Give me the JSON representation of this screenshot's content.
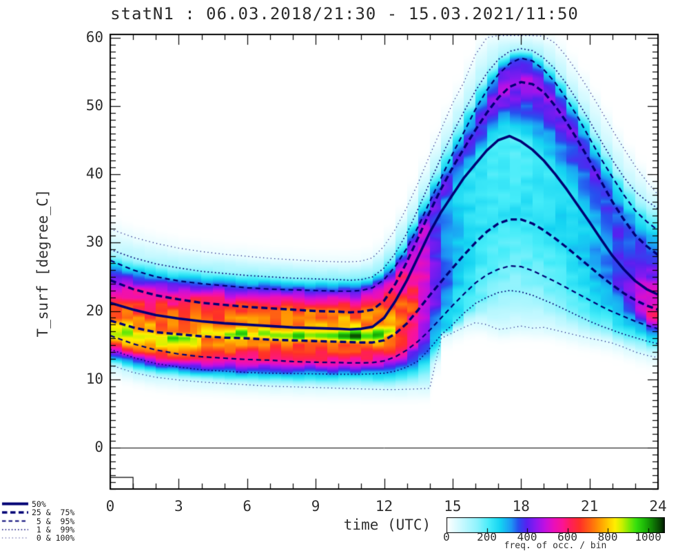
{
  "chart_data": {
    "type": "heatmap",
    "title": "statN1 : 06.03.2018/21:30 - 15.03.2021/11:50",
    "xlabel": "time (UTC)",
    "ylabel": "T_surf [degree_C]",
    "xlim": [
      0,
      24
    ],
    "xticks": [
      0,
      3,
      6,
      9,
      12,
      15,
      18,
      21,
      24
    ],
    "x_minor_step": 1,
    "ylim": [
      -6.05,
      60.47
    ],
    "yticks": [
      0,
      10,
      20,
      30,
      40,
      50,
      60
    ],
    "y_minor_step": 1,
    "zero_line_y": 0,
    "baseline_step": {
      "t_from": 0,
      "t_to": 1.0,
      "temp_top": -4.35
    },
    "line_color": "#000074",
    "legend_items": [
      {
        "style": "solid",
        "label": "50%"
      },
      {
        "style": "dash-thick",
        "label": "25 &  75%"
      },
      {
        "style": "dash",
        "label": " 5 &  95%"
      },
      {
        "style": "dot",
        "label": " 1 &  99%"
      },
      {
        "style": "dot-fine",
        "label": " 0 & 100%"
      }
    ],
    "colorbar": {
      "label": "freq. of occ. / bin",
      "ticks": [
        0,
        200,
        400,
        600,
        800,
        1000
      ],
      "vmax": 1080,
      "stops": [
        [
          0,
          "#ffffff"
        ],
        [
          70,
          "#ccf9ff"
        ],
        [
          150,
          "#8ff3fd"
        ],
        [
          210,
          "#45ecf9"
        ],
        [
          265,
          "#14d4f2"
        ],
        [
          320,
          "#1e96f4"
        ],
        [
          355,
          "#2750ef"
        ],
        [
          395,
          "#5522f0"
        ],
        [
          440,
          "#8b18f0"
        ],
        [
          485,
          "#c010e2"
        ],
        [
          530,
          "#e90fbc"
        ],
        [
          575,
          "#fb1494"
        ],
        [
          615,
          "#ff1e58"
        ],
        [
          660,
          "#ff3028"
        ],
        [
          705,
          "#ff5e14"
        ],
        [
          750,
          "#ff9104"
        ],
        [
          795,
          "#ffc400"
        ],
        [
          835,
          "#ffef00"
        ],
        [
          870,
          "#c8f000"
        ],
        [
          905,
          "#7aea06"
        ],
        [
          940,
          "#35df0e"
        ],
        [
          980,
          "#1db707"
        ],
        [
          1020,
          "#107f04"
        ],
        [
          1060,
          "#084203"
        ],
        [
          1080,
          "#021500"
        ]
      ]
    },
    "times": [
      0,
      1,
      2,
      3,
      4,
      5,
      6,
      7,
      8,
      9,
      10,
      10.5,
      11,
      11.5,
      12,
      12.5,
      13,
      13.5,
      14,
      14.5,
      15,
      15.5,
      16,
      16.5,
      17,
      17.5,
      18,
      18.5,
      19,
      19.5,
      20,
      20.5,
      21,
      21.5,
      22,
      22.5,
      23,
      23.5,
      24
    ],
    "quantiles": {
      "p100": [
        32.0,
        30.8,
        29.9,
        29.2,
        28.7,
        28.3,
        28.0,
        27.7,
        27.5,
        27.3,
        27.2,
        27.2,
        27.3,
        27.8,
        29.5,
        32.0,
        35.2,
        38.8,
        42.8,
        46.6,
        50.4,
        53.5,
        57.5,
        60.0,
        60.3,
        60.3,
        60.3,
        60.3,
        60.2,
        59.2,
        57.2,
        54.8,
        52.2,
        49.4,
        46.5,
        43.8,
        41.2,
        39.0,
        37.0
      ],
      "p99": [
        29.0,
        27.8,
        26.9,
        26.3,
        25.8,
        25.5,
        25.2,
        25.0,
        24.8,
        24.7,
        24.6,
        24.5,
        24.6,
        25.0,
        26.3,
        28.5,
        31.4,
        35.0,
        38.8,
        42.5,
        46.0,
        49.2,
        52.2,
        54.8,
        56.8,
        58.0,
        58.4,
        58.1,
        57.0,
        55.4,
        53.2,
        50.6,
        47.8,
        44.9,
        42.1,
        39.6,
        37.5,
        36.1,
        35.0
      ],
      "p95": [
        27.4,
        26.0,
        25.0,
        24.4,
        24.0,
        23.7,
        23.4,
        23.2,
        23.1,
        23.0,
        22.9,
        22.9,
        23.0,
        23.4,
        24.6,
        26.6,
        29.2,
        32.4,
        36.0,
        39.5,
        43.0,
        46.2,
        49.5,
        52.3,
        54.6,
        56.2,
        57.0,
        56.6,
        55.3,
        53.4,
        51.0,
        48.3,
        45.3,
        42.3,
        39.6,
        37.0,
        34.7,
        33.1,
        31.8
      ],
      "p75": [
        24.5,
        23.2,
        22.3,
        21.7,
        21.2,
        20.9,
        20.6,
        20.4,
        20.2,
        20.0,
        19.9,
        19.8,
        19.9,
        20.2,
        21.5,
        24.0,
        27.2,
        30.8,
        34.5,
        37.9,
        41.0,
        43.8,
        46.5,
        49.0,
        51.2,
        52.8,
        53.5,
        53.2,
        52.0,
        50.0,
        47.6,
        44.9,
        42.0,
        39.0,
        36.0,
        33.4,
        31.1,
        29.5,
        28.2
      ],
      "p50": [
        21.2,
        20.2,
        19.4,
        18.9,
        18.5,
        18.2,
        18.0,
        17.8,
        17.6,
        17.5,
        17.4,
        17.3,
        17.4,
        17.7,
        19.0,
        21.5,
        24.5,
        28.0,
        31.5,
        34.5,
        37.0,
        39.5,
        41.5,
        43.5,
        45.0,
        45.6,
        44.8,
        43.6,
        42.0,
        40.0,
        37.8,
        35.4,
        33.0,
        30.5,
        28.1,
        26.1,
        24.4,
        23.2,
        22.4
      ],
      "p25": [
        18.6,
        17.6,
        16.9,
        16.6,
        16.3,
        16.1,
        16.0,
        15.8,
        15.7,
        15.6,
        15.5,
        15.45,
        15.4,
        15.4,
        15.7,
        16.7,
        18.2,
        20.2,
        22.3,
        24.3,
        26.3,
        28.2,
        30.0,
        31.6,
        32.8,
        33.4,
        33.4,
        32.8,
        31.8,
        30.6,
        29.3,
        27.9,
        26.5,
        25.1,
        23.8,
        22.6,
        21.6,
        20.8,
        20.2
      ],
      "p5": [
        16.4,
        15.2,
        14.3,
        13.7,
        13.3,
        13.1,
        12.9,
        12.8,
        12.6,
        12.5,
        12.45,
        12.4,
        12.4,
        12.45,
        12.7,
        13.3,
        14.3,
        15.6,
        17.2,
        19.0,
        20.8,
        22.5,
        24.1,
        25.3,
        26.1,
        26.6,
        26.5,
        25.9,
        25.1,
        24.3,
        23.4,
        22.5,
        21.6,
        20.7,
        19.9,
        19.2,
        18.5,
        17.9,
        17.4
      ],
      "p1": [
        14.4,
        13.2,
        12.3,
        11.8,
        11.4,
        11.2,
        11.0,
        10.9,
        10.85,
        10.8,
        10.75,
        10.75,
        10.75,
        10.8,
        10.9,
        11.2,
        11.8,
        12.7,
        14.5,
        16.5,
        18.0,
        19.7,
        21.1,
        22.0,
        22.7,
        23.0,
        22.8,
        22.3,
        21.6,
        20.9,
        20.1,
        19.3,
        18.5,
        17.8,
        17.2,
        16.6,
        16.1,
        15.6,
        15.2
      ],
      "p0": [
        12.1,
        11.0,
        10.3,
        9.9,
        9.6,
        9.4,
        9.2,
        9.0,
        8.9,
        8.8,
        8.7,
        8.65,
        8.6,
        8.55,
        8.5,
        8.5,
        8.55,
        8.6,
        8.7,
        16.0,
        16.8,
        17.6,
        18.3,
        18.0,
        17.3,
        17.5,
        17.8,
        17.5,
        17.6,
        17.2,
        16.8,
        16.4,
        16.0,
        15.7,
        15.3,
        14.7,
        14.0,
        13.5,
        13.2
      ]
    },
    "mode_track": {
      "temp": [
        16.6,
        16.5,
        16.45,
        16.4,
        16.35,
        16.3,
        16.3,
        16.3,
        16.3,
        16.3,
        16.25,
        16.2,
        16.15,
        16.1,
        16.5,
        17.5,
        19.0,
        21.0,
        23.0,
        25.0,
        27.5,
        29.5,
        31.3,
        32.8,
        34.0,
        34.6,
        34.2,
        33.4,
        32.4,
        31.0,
        29.6,
        28.2,
        26.8,
        25.4,
        24.0,
        22.5,
        21.0,
        19.9,
        19.2
      ],
      "density": [
        910,
        915,
        920,
        925,
        930,
        935,
        940,
        945,
        958,
        995,
        1030,
        1045,
        1040,
        1020,
        950,
        850,
        725,
        620,
        480,
        370,
        302,
        266,
        246,
        236,
        230,
        228,
        231,
        236,
        242,
        252,
        264,
        280,
        302,
        332,
        372,
        422,
        492,
        580,
        662
      ]
    },
    "density_at_quantiles": {
      "p100": [
        25,
        25,
        25,
        25,
        25,
        25,
        25,
        25,
        25,
        25,
        25,
        25,
        25,
        25,
        25,
        25,
        25,
        25,
        22,
        20,
        20,
        20,
        20,
        20,
        20,
        20,
        20,
        20,
        20,
        20,
        20,
        20,
        22,
        22,
        24,
        24,
        25,
        25,
        25
      ],
      "p99": [
        85,
        100,
        115,
        128,
        138,
        145,
        150,
        154,
        157,
        159,
        160,
        160,
        160,
        158,
        150,
        140,
        130,
        120,
        110,
        102,
        100,
        100,
        102,
        108,
        115,
        120,
        118,
        112,
        105,
        100,
        98,
        95,
        92,
        90,
        88,
        86,
        85,
        84,
        84
      ],
      "p95": [
        210,
        260,
        300,
        330,
        355,
        370,
        382,
        390,
        396,
        400,
        403,
        404,
        405,
        400,
        380,
        350,
        330,
        320,
        300,
        280,
        272,
        272,
        285,
        320,
        360,
        385,
        380,
        340,
        300,
        285,
        272,
        262,
        252,
        242,
        234,
        227,
        222,
        219,
        217
      ],
      "p75": [
        480,
        530,
        570,
        605,
        635,
        655,
        670,
        682,
        692,
        700,
        706,
        708,
        710,
        705,
        660,
        600,
        540,
        505,
        475,
        445,
        425,
        418,
        428,
        450,
        468,
        475,
        470,
        455,
        440,
        435,
        428,
        416,
        402,
        386,
        370,
        356,
        346,
        340,
        338
      ],
      "p50": [
        640,
        660,
        680,
        700,
        720,
        735,
        748,
        758,
        766,
        772,
        776,
        778,
        778,
        775,
        680,
        620,
        565,
        505,
        405,
        330,
        280,
        250,
        228,
        212,
        202,
        200,
        205,
        210,
        220,
        230,
        242,
        256,
        272,
        300,
        340,
        390,
        440,
        480,
        505
      ],
      "p25": [
        790,
        780,
        772,
        766,
        762,
        758,
        755,
        753,
        752,
        752,
        753,
        755,
        757,
        758,
        745,
        705,
        645,
        565,
        475,
        385,
        315,
        275,
        247,
        231,
        221,
        216,
        216,
        221,
        226,
        236,
        246,
        261,
        281,
        311,
        351,
        402,
        462,
        532,
        605
      ],
      "p5": [
        850,
        800,
        745,
        705,
        668,
        638,
        612,
        592,
        576,
        562,
        550,
        545,
        540,
        540,
        560,
        600,
        560,
        470,
        385,
        315,
        265,
        230,
        207,
        192,
        182,
        177,
        177,
        182,
        187,
        192,
        202,
        212,
        227,
        247,
        267,
        292,
        322,
        352,
        382
      ],
      "p1": [
        500,
        460,
        420,
        390,
        365,
        345,
        330,
        318,
        308,
        300,
        295,
        292,
        290,
        290,
        295,
        305,
        315,
        320,
        310,
        275,
        240,
        210,
        186,
        166,
        152,
        142,
        137,
        137,
        142,
        147,
        152,
        157,
        164,
        172,
        180,
        187,
        194,
        200,
        206
      ],
      "p0": [
        70,
        64,
        60,
        57,
        54,
        52,
        50,
        48,
        47,
        46,
        45,
        45,
        44,
        44,
        44,
        44,
        45,
        45,
        45,
        42,
        42,
        42,
        43,
        45,
        48,
        50,
        50,
        49,
        48,
        47,
        46,
        45,
        44,
        43,
        42,
        41,
        40,
        40,
        40
      ]
    }
  }
}
